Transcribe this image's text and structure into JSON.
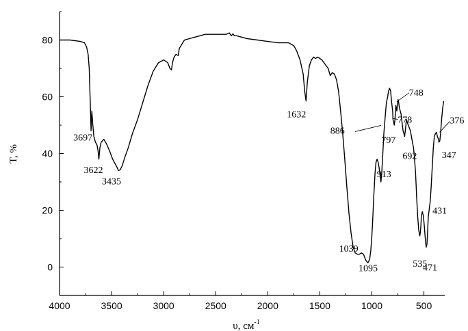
{
  "chart_data": {
    "type": "line",
    "xlabel": "υ, см",
    "xlabel_sup": "-1",
    "ylabel": "T, %",
    "xlim": [
      4000,
      300
    ],
    "ylim": [
      -10,
      90
    ],
    "x_ticks": [
      4000,
      3500,
      3000,
      2500,
      2000,
      1500,
      1000,
      500
    ],
    "x_tick_labels": [
      "4000",
      "3500",
      "3000",
      "2500",
      "2000",
      "1500",
      "1000",
      "500"
    ],
    "y_ticks": [
      0,
      20,
      40,
      60,
      80
    ],
    "y_tick_labels": [
      "0",
      "20",
      "40",
      "60",
      "80"
    ],
    "grid": false,
    "series": [
      {
        "x": [
          4000,
          3900,
          3800,
          3760,
          3740,
          3725,
          3715,
          3705,
          3700,
          3697,
          3690,
          3680,
          3670,
          3655,
          3640,
          3630,
          3622,
          3612,
          3600,
          3575,
          3550,
          3520,
          3490,
          3460,
          3445,
          3435,
          3420,
          3400,
          3370,
          3340,
          3300,
          3250,
          3200,
          3150,
          3100,
          3050,
          3000,
          2960,
          2940,
          2925,
          2915,
          2900,
          2880,
          2860,
          2850,
          2800,
          2700,
          2600,
          2500,
          2400,
          2370,
          2350,
          2335,
          2320,
          2300,
          2200,
          2100,
          2000,
          1900,
          1800,
          1750,
          1720,
          1690,
          1660,
          1645,
          1632,
          1620,
          1600,
          1580,
          1560,
          1540,
          1520,
          1500,
          1480,
          1460,
          1440,
          1420,
          1400,
          1380,
          1360,
          1340,
          1320,
          1300,
          1280,
          1260,
          1240,
          1220,
          1200,
          1180,
          1160,
          1140,
          1120,
          1100,
          1080,
          1060,
          1050,
          1039,
          1030,
          1020,
          1010,
          1000,
          990,
          980,
          970,
          960,
          950,
          940,
          930,
          920,
          913,
          905,
          895,
          885,
          870,
          860,
          848,
          840,
          830,
          820,
          810,
          800,
          797,
          790,
          785,
          778,
          770,
          760,
          752,
          748,
          742,
          735,
          720,
          710,
          700,
          692,
          685,
          676,
          668,
          660,
          650,
          640,
          630,
          620,
          610,
          600,
          590,
          580,
          570,
          560,
          550,
          540,
          535,
          530,
          524,
          515,
          505,
          495,
          485,
          478,
          471,
          465,
          458,
          450,
          440,
          431,
          420,
          410,
          400,
          390,
          380,
          376,
          370,
          360,
          355,
          347,
          340,
          330,
          320,
          310
        ],
        "y": [
          80,
          80,
          79.5,
          79,
          77.5,
          75,
          70,
          58,
          52,
          48,
          55,
          50,
          46,
          44,
          43,
          41,
          38,
          42,
          44,
          45,
          43.5,
          41,
          38,
          36,
          35,
          34,
          34.2,
          35.5,
          39,
          42,
          47,
          52,
          58,
          64,
          69,
          72,
          73,
          72,
          70,
          69.5,
          72,
          74,
          75,
          74.5,
          77,
          80,
          81,
          82,
          82,
          82,
          82.5,
          81.5,
          82.2,
          81.5,
          81.5,
          80.5,
          80,
          79.5,
          79,
          79,
          78,
          76,
          73,
          68,
          62,
          58.5,
          65,
          71,
          73,
          74,
          73.5,
          74,
          73.5,
          73,
          72,
          71,
          70,
          67.5,
          68.5,
          68,
          66,
          62,
          55,
          47,
          38,
          28,
          19,
          12,
          7,
          5,
          4.5,
          4.5,
          5,
          4.5,
          2.5,
          2,
          1.5,
          2,
          3,
          6,
          11,
          18,
          26,
          33,
          37,
          38,
          37,
          35,
          32,
          30,
          33,
          40,
          47,
          54,
          58,
          60,
          62,
          63,
          62,
          58,
          55,
          52,
          51,
          50,
          52,
          57,
          55,
          58,
          59,
          58,
          56,
          54,
          51,
          48,
          47,
          46,
          49,
          52,
          51,
          50,
          49,
          48,
          46,
          44,
          42,
          38,
          33,
          25,
          18,
          13,
          11,
          12,
          14,
          18,
          19.5,
          18,
          14,
          9,
          7,
          8,
          12,
          18,
          20,
          23,
          28,
          35,
          42,
          46,
          47,
          47.5,
          47,
          46,
          45,
          44,
          44.5,
          47,
          52,
          56,
          58.5
        ]
      }
    ],
    "annotations": [
      {
        "text": "3697",
        "x": 3697,
        "y": 48
      },
      {
        "text": "3622",
        "x": 3622,
        "y": 38
      },
      {
        "text": "3435",
        "x": 3435,
        "y": 34
      },
      {
        "text": "1632",
        "x": 1632,
        "y": 58.5
      },
      {
        "text": "1039",
        "x": 1039,
        "y": 4.5
      },
      {
        "text": "1095",
        "x": 1095,
        "y": 1.5
      },
      {
        "text": "913",
        "x": 913,
        "y": 30
      },
      {
        "text": "886",
        "x": 886,
        "y": 47
      },
      {
        "text": "797",
        "x": 797,
        "y": 50
      },
      {
        "text": "778",
        "x": 778,
        "y": 52
      },
      {
        "text": "748",
        "x": 748,
        "y": 58
      },
      {
        "text": "692",
        "x": 692,
        "y": 46
      },
      {
        "text": "535",
        "x": 535,
        "y": 11
      },
      {
        "text": "471",
        "x": 471,
        "y": 7
      },
      {
        "text": "431",
        "x": 431,
        "y": 20
      },
      {
        "text": "376",
        "x": 376,
        "y": 47
      },
      {
        "text": "347",
        "x": 347,
        "y": 44
      }
    ]
  }
}
